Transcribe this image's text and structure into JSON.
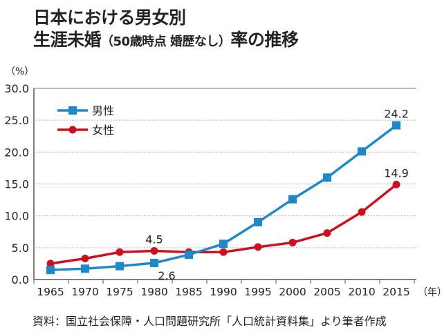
{
  "title": {
    "line1": "日本における男女別",
    "line2_main": "生涯未婚",
    "line2_paren": "（50歳時点 婚歴なし）",
    "line2_tail": "率の推移"
  },
  "source": "資料：国立社会保障・人口問題研究所「人口統計資料集」より筆者作成",
  "colors": {
    "male": "#1f88c8",
    "female": "#cc1020",
    "grid": "#999999",
    "axis": "#555555"
  },
  "chart_data": {
    "type": "line",
    "title": "日本における男女別 生涯未婚（50歳時点 婚歴なし）率の推移",
    "xlabel": "（年）",
    "ylabel": "（%）",
    "x": [
      1965,
      1970,
      1975,
      1980,
      1985,
      1990,
      1995,
      2000,
      2005,
      2010,
      2015
    ],
    "x_tick_labels": [
      "1965",
      "1970",
      "1975",
      "1980",
      "1985",
      "1990",
      "1995",
      "2000",
      "2005",
      "2010",
      "2015"
    ],
    "ylim": [
      0,
      30
    ],
    "y_ticks": [
      0,
      5,
      10,
      15,
      20,
      25,
      30
    ],
    "y_tick_labels": [
      "0.0",
      "5.0",
      "10.0",
      "15.0",
      "20.0",
      "25.0",
      "30.0"
    ],
    "grid": true,
    "legend_position": "top-left",
    "series": [
      {
        "name": "男性",
        "marker": "square",
        "values": [
          1.5,
          1.7,
          2.1,
          2.6,
          3.9,
          5.6,
          9.0,
          12.6,
          16.0,
          20.1,
          24.2
        ]
      },
      {
        "name": "女性",
        "marker": "circle",
        "values": [
          2.5,
          3.3,
          4.3,
          4.5,
          4.3,
          4.3,
          5.1,
          5.8,
          7.3,
          10.6,
          14.9
        ]
      }
    ],
    "annotations": [
      {
        "series": "女性",
        "x": 1980,
        "text": "4.5",
        "placement": "above"
      },
      {
        "series": "男性",
        "x": 1980,
        "text": "2.6",
        "placement": "below"
      },
      {
        "series": "男性",
        "x": 2015,
        "text": "24.2",
        "placement": "above"
      },
      {
        "series": "女性",
        "x": 2015,
        "text": "14.9",
        "placement": "above"
      }
    ]
  }
}
